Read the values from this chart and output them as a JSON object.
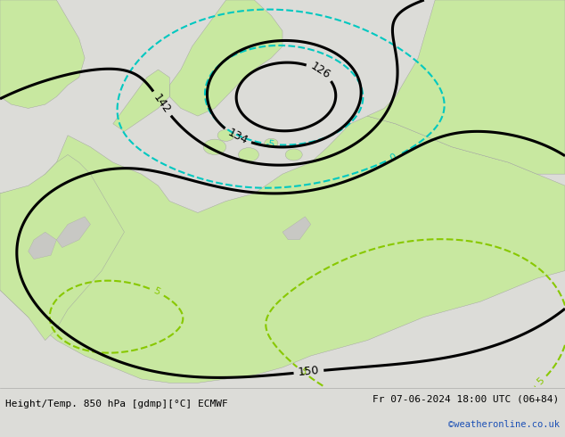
{
  "title_left": "Height/Temp. 850 hPa [gdmp][°C] ECMWF",
  "title_right": "Fr 07-06-2024 18:00 UTC (06+84)",
  "credit": "©weatheronline.co.uk",
  "fig_width": 6.34,
  "fig_height": 4.9,
  "dpi": 100,
  "ocean_color": "#d0cece",
  "land_color": "#c8e8a0",
  "land_color2": "#b8de88",
  "coast_color": "#a0a0a0",
  "font_size_title": 8,
  "credit_color": "#1a4fb5",
  "bar_color": "#dcdcd8"
}
